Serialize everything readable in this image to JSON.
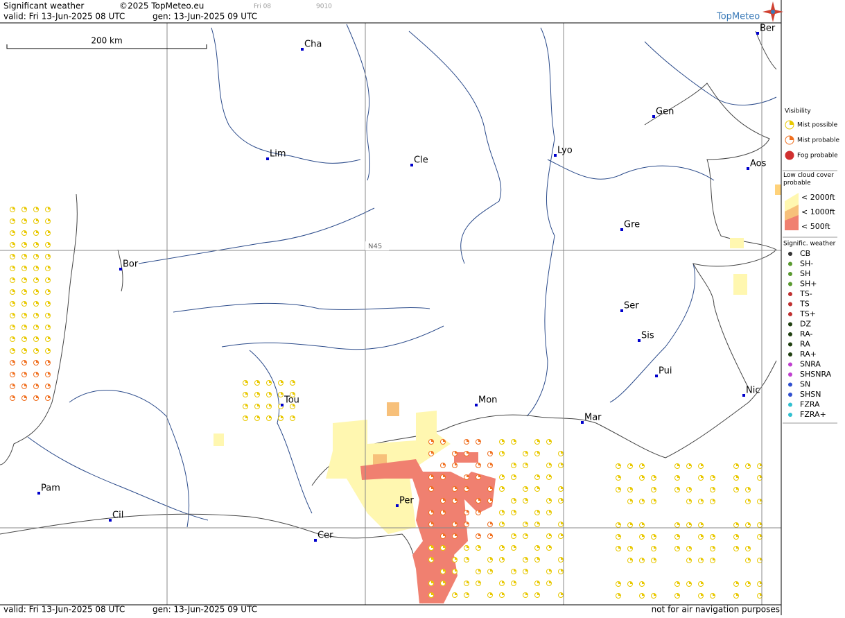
{
  "header": {
    "title": "Significant weather",
    "copyright": "©2025 TopMeteo.eu",
    "valid": "valid:  Fri  13-Jun-2025  08 UTC",
    "gen": "gen: 13-Jun-2025  09 UTC",
    "run": "Fri 08",
    "code": "9010",
    "logo": "TopMeteo"
  },
  "map": {
    "scale": "200 km",
    "parallel": "N45",
    "cities": [
      "Cha",
      "Ber",
      "Gen",
      "Lim",
      "Cle",
      "Lyo",
      "Aos",
      "Gre",
      "Bor",
      "Ser",
      "Sis",
      "Pui",
      "Tou",
      "Mon",
      "Nic",
      "Mar",
      "Pam",
      "Per",
      "Cil",
      "Cer"
    ]
  },
  "legend": {
    "visibility": {
      "title": "Visibility",
      "items": [
        "Mist possible",
        "Mist probable",
        "Fog probable"
      ]
    },
    "low_cloud": {
      "title": "Low cloud cover probable",
      "items": [
        "< 2000ft",
        "< 1000ft",
        "<   500ft"
      ]
    },
    "weather": {
      "title": "Signific. weather",
      "items": [
        "CB",
        "SH-",
        "SH",
        "SH+",
        "TS-",
        "TS",
        "TS+",
        "DZ",
        "RA-",
        "RA",
        "RA+",
        "SNRA",
        "SHSNRA",
        "SN",
        "SHSN",
        "FZRA",
        "FZRA+"
      ]
    }
  },
  "footer": {
    "valid": "valid:  Fri  13-Jun-2025  08 UTC",
    "gen": "gen: 13-Jun-2025  09 UTC",
    "note": "not for air navigation purposes"
  }
}
